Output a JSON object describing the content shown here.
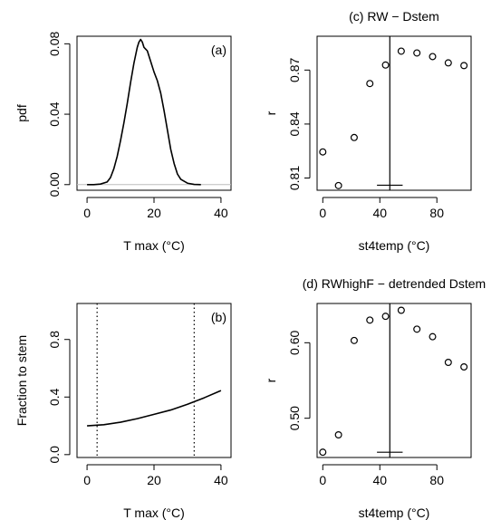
{
  "chart_data": [
    {
      "id": "a",
      "type": "line",
      "panel_label": "(a)",
      "title": "",
      "xlabel": "T max (°C)",
      "ylabel": "pdf",
      "xlim": [
        -3,
        43
      ],
      "ylim": [
        -0.0032,
        0.0843
      ],
      "xticks": [
        0,
        20,
        40
      ],
      "xtick_labels": [
        "0",
        "20",
        "40"
      ],
      "yticks": [
        0.0,
        0.04,
        0.08
      ],
      "ytick_labels": [
        "0.00",
        "0.04",
        "0.08"
      ],
      "hline": 0,
      "hline_color": "#bebebe",
      "series": [
        {
          "x": [
            0,
            2,
            4,
            6,
            7,
            8,
            9,
            10,
            11,
            12,
            13,
            14,
            15,
            15.5,
            16,
            16.5,
            17,
            17.5,
            18,
            19,
            20,
            21,
            22,
            23,
            24,
            25,
            26,
            27,
            28,
            30,
            32,
            34
          ],
          "y": [
            0,
            0,
            0.0003,
            0.0015,
            0.004,
            0.009,
            0.016,
            0.025,
            0.035,
            0.046,
            0.058,
            0.069,
            0.078,
            0.081,
            0.0825,
            0.081,
            0.078,
            0.077,
            0.076,
            0.07,
            0.064,
            0.059,
            0.052,
            0.042,
            0.031,
            0.02,
            0.012,
            0.006,
            0.003,
            0.0008,
            0.0001,
            0
          ]
        }
      ]
    },
    {
      "id": "b",
      "type": "line",
      "panel_label": "(b)",
      "title": "",
      "xlabel": "T max (°C)",
      "ylabel": "Fraction to stem",
      "xlim": [
        -3,
        43
      ],
      "ylim": [
        -0.02,
        1.05
      ],
      "xticks": [
        0,
        20,
        40
      ],
      "xtick_labels": [
        "0",
        "20",
        "40"
      ],
      "yticks": [
        0.0,
        0.4,
        0.8
      ],
      "ytick_labels": [
        "0.0",
        "0.4",
        "0.8"
      ],
      "vlines": [
        3,
        32
      ],
      "series": [
        {
          "x": [
            0,
            5,
            10,
            15,
            20,
            25,
            30,
            35,
            40
          ],
          "y": [
            0.2,
            0.208,
            0.225,
            0.25,
            0.28,
            0.31,
            0.35,
            0.395,
            0.445
          ]
        }
      ]
    },
    {
      "id": "c",
      "type": "scatter",
      "panel_label": "",
      "title": "(c) RW − Dstem",
      "xlabel": "st4temp (°C)",
      "ylabel": "r",
      "xlim": [
        -4,
        104
      ],
      "ylim": [
        0.8032,
        0.8888
      ],
      "xticks": [
        0,
        40,
        80
      ],
      "xtick_labels": [
        "0",
        "40",
        "80"
      ],
      "yticks": [
        0.81,
        0.84,
        0.87
      ],
      "ytick_labels": [
        "0.81",
        "0.84",
        "0.87"
      ],
      "vline": 47,
      "ci_segment": {
        "x": [
          38,
          56
        ],
        "y": 0.806
      },
      "series": [
        {
          "x": [
            0,
            11,
            22,
            33,
            44,
            55,
            66,
            77,
            88,
            99
          ],
          "y": [
            0.8245,
            0.8058,
            0.8325,
            0.8625,
            0.8728,
            0.8805,
            0.8795,
            0.8775,
            0.874,
            0.8725
          ]
        }
      ]
    },
    {
      "id": "d",
      "type": "scatter",
      "panel_label": "",
      "title": "(d) RWhighF − detrended Dstem",
      "xlabel": "st4temp (°C)",
      "ylabel": "r",
      "xlim": [
        -4,
        104
      ],
      "ylim": [
        0.448,
        0.652
      ],
      "xticks": [
        0,
        40,
        80
      ],
      "xtick_labels": [
        "0",
        "40",
        "80"
      ],
      "yticks": [
        0.5,
        0.6
      ],
      "ytick_labels": [
        "0.50",
        "0.60"
      ],
      "vline": 47,
      "ci_segment": {
        "x": [
          38,
          56
        ],
        "y": 0.455
      },
      "series": [
        {
          "x": [
            0,
            11,
            22,
            33,
            44,
            55,
            66,
            77,
            88,
            99
          ],
          "y": [
            0.455,
            0.478,
            0.603,
            0.63,
            0.635,
            0.643,
            0.618,
            0.608,
            0.574,
            0.568
          ]
        }
      ]
    }
  ]
}
